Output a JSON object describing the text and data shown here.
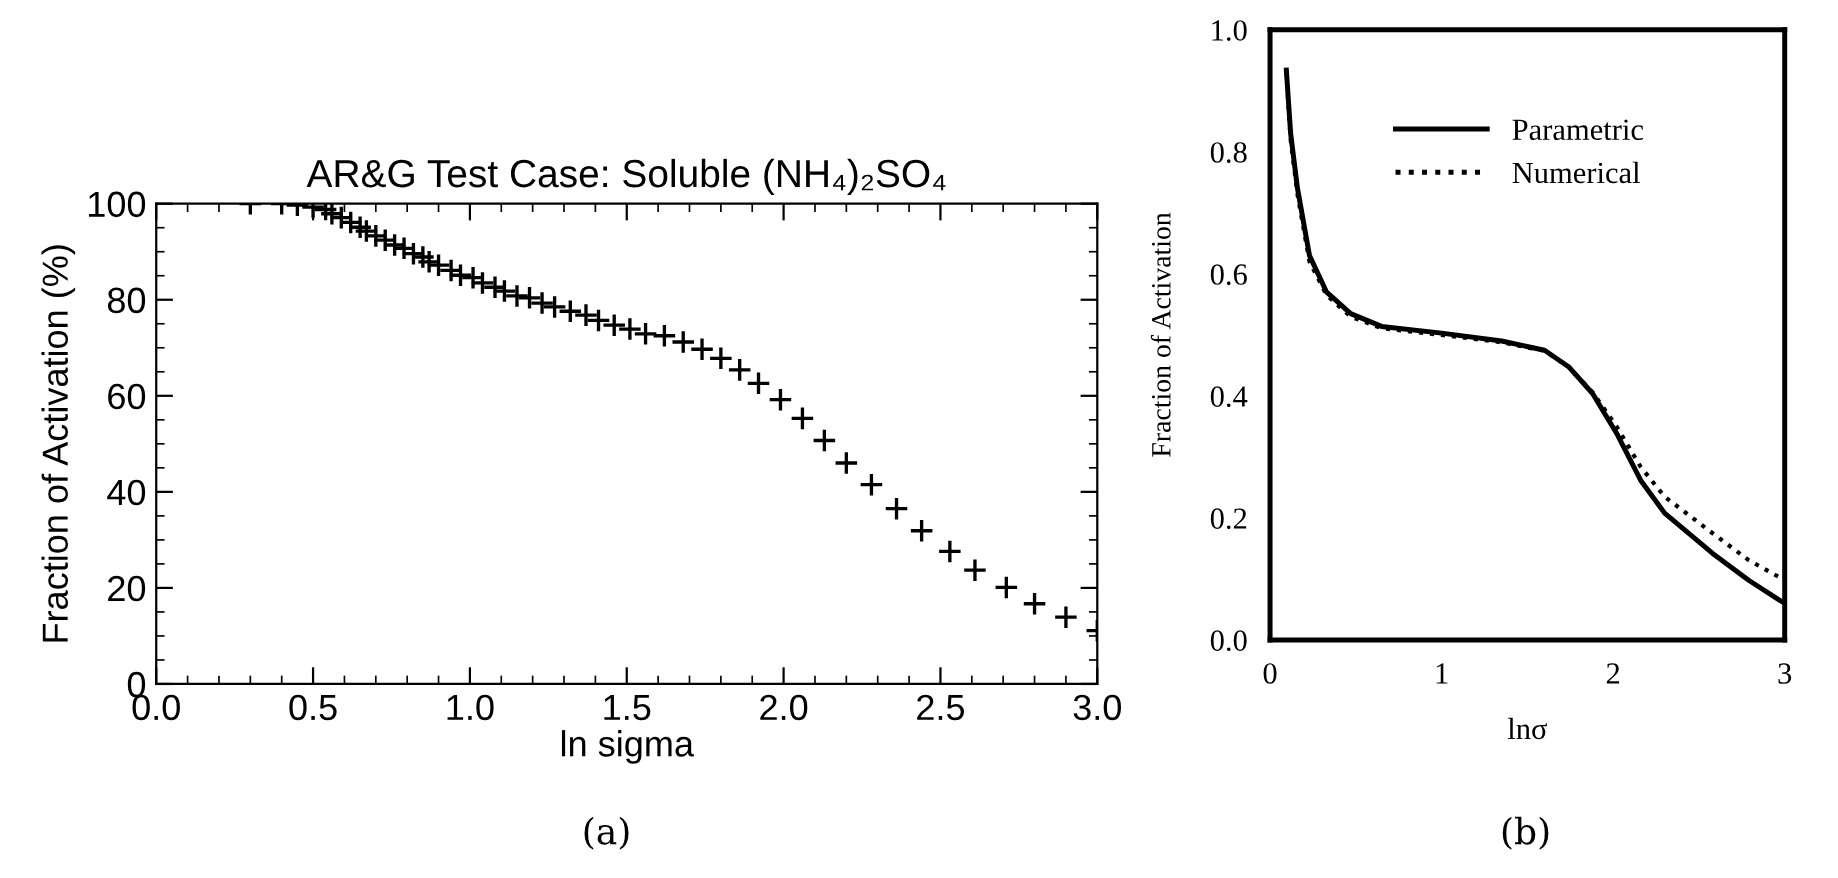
{
  "chart_data": [
    {
      "type": "scatter",
      "title": "AR&G Test Case: Soluble (NH₄)₂SO₄",
      "xlabel": "ln sigma",
      "ylabel": "Fraction of Activation (%)",
      "marker": "cross",
      "grid": false,
      "annotations": [
        "(a)"
      ],
      "xlim": [
        0,
        3
      ],
      "ylim": [
        0,
        100
      ],
      "xticks": [
        {
          "value": 0,
          "label": "0.0"
        },
        {
          "value": 0.5,
          "label": "0.5"
        },
        {
          "value": 1,
          "label": "1.0"
        },
        {
          "value": 1.5,
          "label": "1.5"
        },
        {
          "value": 2,
          "label": "2.0"
        },
        {
          "value": 2.5,
          "label": "2.5"
        },
        {
          "value": 3,
          "label": "3.0"
        }
      ],
      "yticks": [
        0,
        20,
        40,
        60,
        80,
        100
      ],
      "series": [
        {
          "color": "#000000",
          "x": [
            0.3,
            0.4,
            0.45,
            0.5,
            0.54,
            0.56,
            0.59,
            0.62,
            0.65,
            0.67,
            0.7,
            0.73,
            0.76,
            0.79,
            0.82,
            0.85,
            0.87,
            0.9,
            0.94,
            0.97,
            1.01,
            1.04,
            1.08,
            1.11,
            1.15,
            1.19,
            1.23,
            1.27,
            1.32,
            1.37,
            1.41,
            1.46,
            1.51,
            1.56,
            1.62,
            1.68,
            1.74,
            1.8,
            1.86,
            1.92,
            1.99,
            2.06,
            2.13,
            2.2,
            2.28,
            2.36,
            2.44,
            2.53,
            2.61,
            2.71,
            2.8,
            2.9,
            3.0
          ],
          "values": [
            100,
            100,
            99.7,
            99.3,
            98.8,
            97.9,
            97.1,
            96.1,
            95.1,
            94.3,
            93.3,
            92.4,
            91.4,
            90.7,
            89.6,
            88.9,
            87.9,
            87.2,
            86.1,
            85.1,
            84.6,
            83.5,
            82.6,
            81.8,
            80.8,
            80.4,
            79.3,
            78.5,
            77.6,
            76.8,
            75.7,
            74.7,
            73.9,
            72.9,
            72.5,
            71.2,
            69.7,
            67.8,
            65.4,
            62.6,
            59.2,
            55.3,
            50.7,
            46.0,
            41.5,
            36.5,
            31.9,
            27.6,
            23.7,
            20.1,
            16.7,
            13.9,
            11.1
          ]
        }
      ]
    },
    {
      "type": "line",
      "xlabel": "lnσ",
      "ylabel": "Fraction of Activation",
      "legend": "top right",
      "grid": false,
      "annotations": [
        "(b)"
      ],
      "xlim": [
        0,
        3
      ],
      "ylim": [
        0,
        1
      ],
      "xticks": [
        0,
        1,
        2,
        3
      ],
      "yticks": [
        {
          "value": 0,
          "label": "0.0"
        },
        {
          "value": 0.2,
          "label": "0.2"
        },
        {
          "value": 0.4,
          "label": "0.4"
        },
        {
          "value": 0.6,
          "label": "0.6"
        },
        {
          "value": 0.8,
          "label": "0.8"
        },
        {
          "value": 1,
          "label": "1.0"
        }
      ],
      "series": [
        {
          "name": "Parametric",
          "color": "#000000",
          "line_style": "solid",
          "x": [
            0.095,
            0.12,
            0.16,
            0.23,
            0.33,
            0.47,
            0.65,
            1.0,
            1.35,
            1.6,
            1.74,
            1.88,
            2.02,
            2.16,
            2.3,
            2.58,
            2.79,
            3.0
          ],
          "values": [
            0.934,
            0.83,
            0.74,
            0.63,
            0.57,
            0.535,
            0.514,
            0.503,
            0.49,
            0.475,
            0.448,
            0.404,
            0.339,
            0.262,
            0.208,
            0.142,
            0.098,
            0.06
          ]
        },
        {
          "name": "Numerical",
          "color": "#000000",
          "line_style": "dotted",
          "x": [
            0.095,
            0.12,
            0.16,
            0.23,
            0.33,
            0.47,
            0.65,
            1.0,
            1.35,
            1.6,
            1.74,
            1.88,
            2.02,
            2.16,
            2.3,
            2.58,
            2.79,
            3.0
          ],
          "values": [
            0.93,
            0.82,
            0.73,
            0.62,
            0.565,
            0.53,
            0.511,
            0.5,
            0.488,
            0.474,
            0.448,
            0.406,
            0.35,
            0.284,
            0.235,
            0.175,
            0.131,
            0.098
          ]
        }
      ]
    }
  ]
}
